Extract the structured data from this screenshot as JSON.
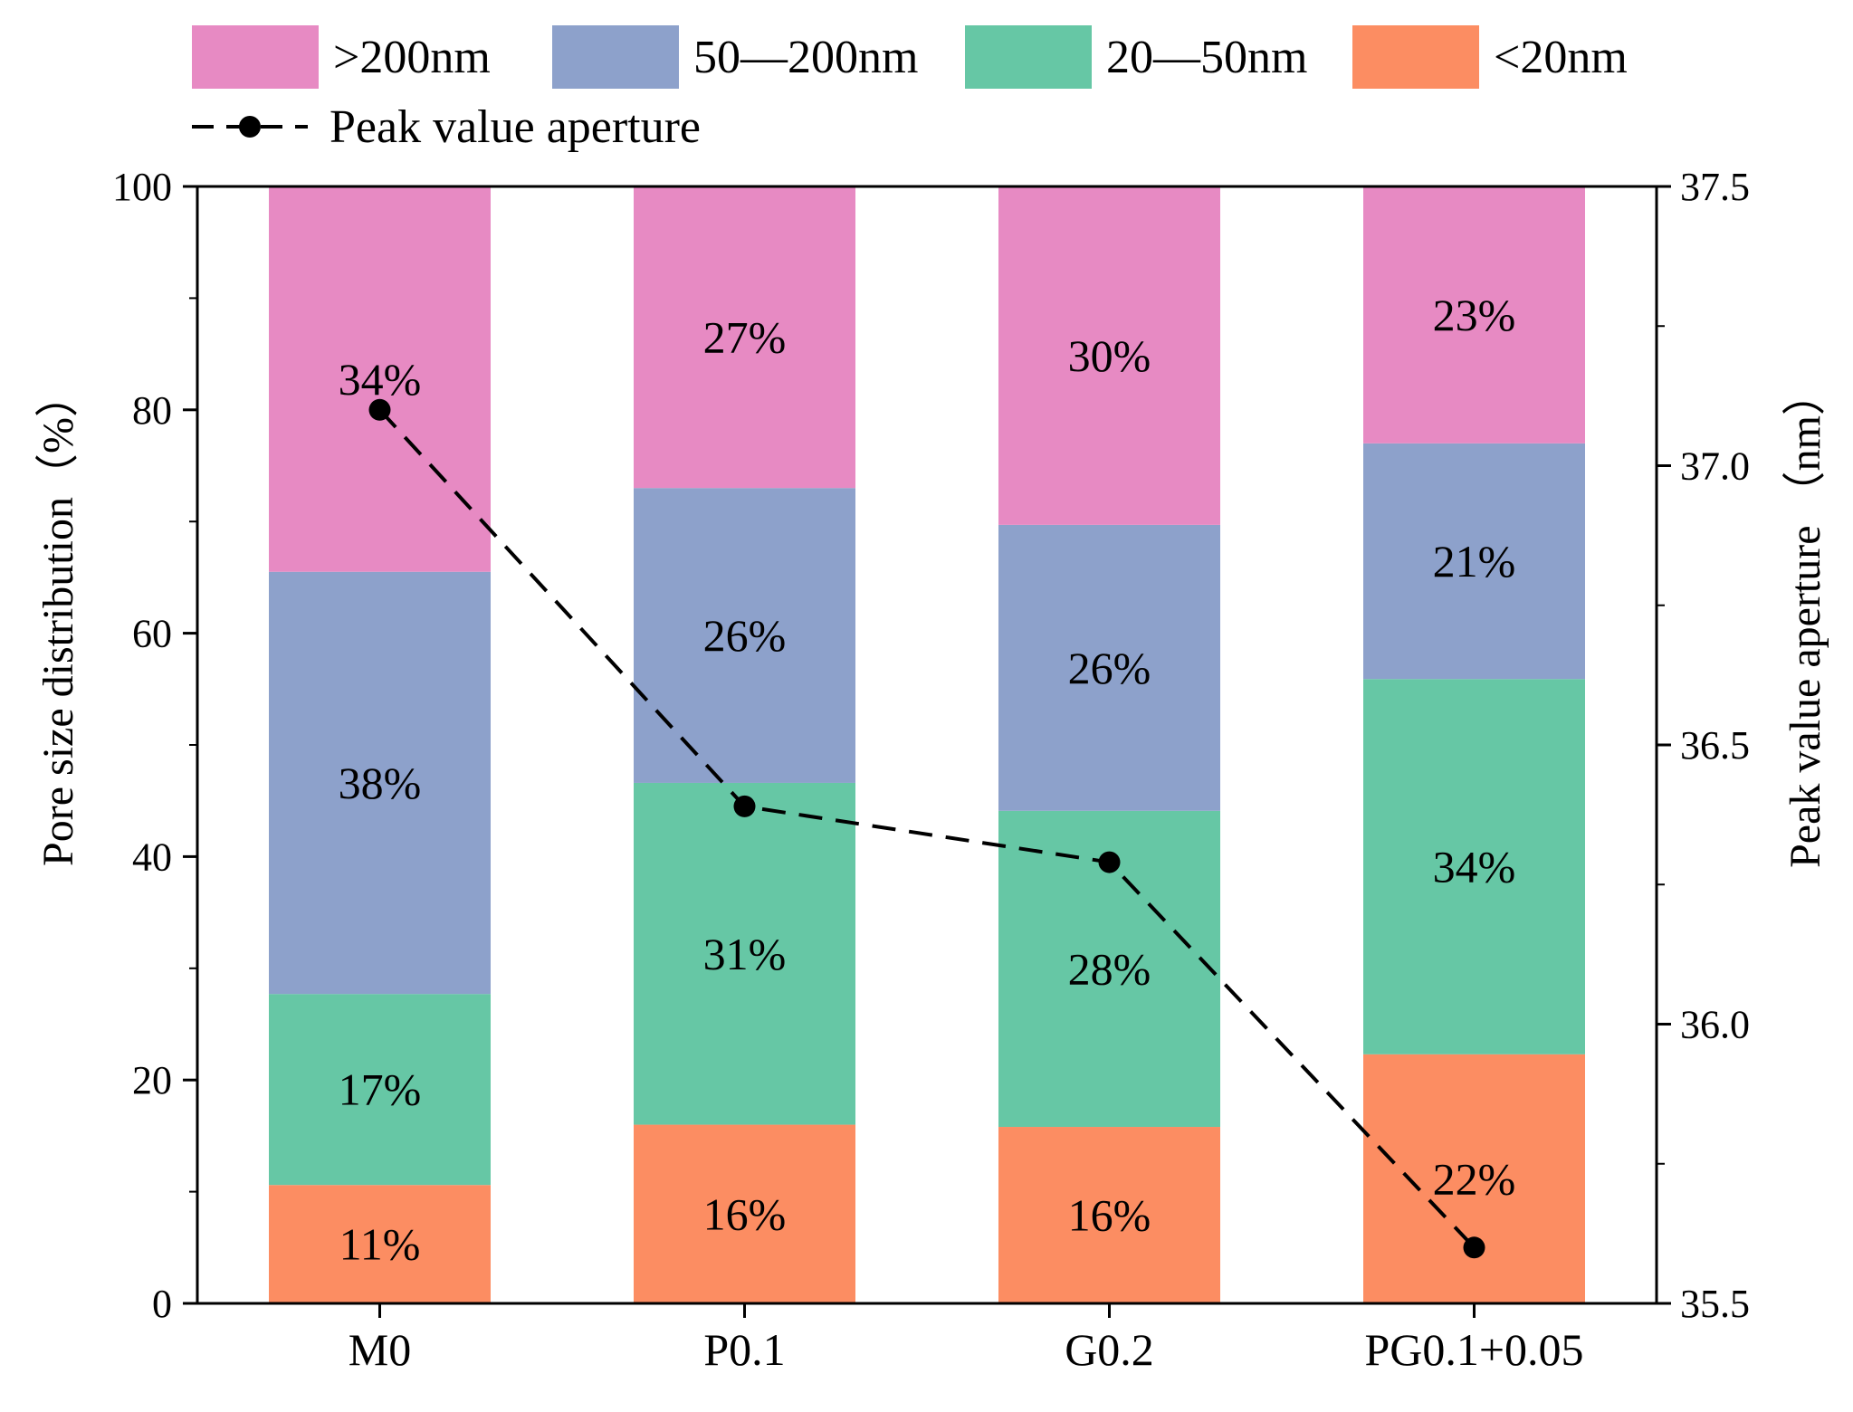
{
  "chart_data": {
    "type": "bar",
    "stacked": true,
    "categories": [
      "M0",
      "P0.1",
      "G0.2",
      "PG0.1+0.05"
    ],
    "series": [
      {
        "name": "<20nm",
        "color": "#FC8D62",
        "values": [
          10.6,
          16.0,
          15.8,
          22.3
        ],
        "labels": [
          "11%",
          "16%",
          "16%",
          "22%"
        ]
      },
      {
        "name": "20—50nm",
        "color": "#66C7A5",
        "values": [
          17.1,
          30.6,
          28.3,
          33.6
        ],
        "labels": [
          "17%",
          "31%",
          "28%",
          "34%"
        ]
      },
      {
        "name": "50—200nm",
        "color": "#8DA1CB",
        "values": [
          37.8,
          26.4,
          25.6,
          21.1
        ],
        "labels": [
          "38%",
          "26%",
          "26%",
          "21%"
        ]
      },
      {
        "name": ">200nm",
        "color": "#E78AC3",
        "values": [
          34.5,
          27.0,
          30.3,
          23.0
        ],
        "labels": [
          "34%",
          "27%",
          "30%",
          "23%"
        ]
      }
    ],
    "line_series": {
      "name": "Peak value aperture",
      "axis": "right",
      "values": [
        37.1,
        36.39,
        36.29,
        35.6
      ],
      "color": "#000000",
      "style": "dashed",
      "marker": "circle"
    },
    "ylabel": "Pore size distribution（%）",
    "ylim": [
      0,
      100
    ],
    "yticks": [
      "0",
      "20",
      "40",
      "60",
      "80",
      "100"
    ],
    "y2label": "Peak value aperture （nm）",
    "y2lim": [
      35.5,
      37.5
    ],
    "y2ticks": [
      "35.5",
      "36.0",
      "36.5",
      "37.0",
      "37.5"
    ],
    "legend": {
      "placement": "top",
      "bar_labels": [
        ">200nm",
        "50—200nm",
        "20—50nm",
        "<20nm"
      ],
      "line_label": "Peak value aperture"
    },
    "grid": false
  }
}
